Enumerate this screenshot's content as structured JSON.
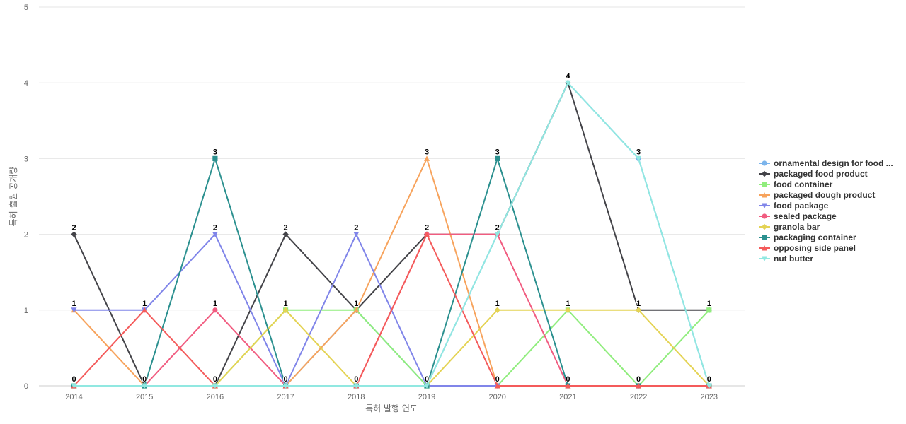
{
  "chart_data": {
    "type": "line",
    "xlabel": "특허 발행 연도",
    "ylabel": "특허 출원 공개량",
    "ylim": [
      0,
      5
    ],
    "yticks": [
      0,
      1,
      2,
      3,
      4,
      5
    ],
    "grid": true,
    "legend_position": "right",
    "x": [
      "2014",
      "2015",
      "2016",
      "2017",
      "2018",
      "2019",
      "2020",
      "2021",
      "2022",
      "2023"
    ],
    "series": [
      {
        "name": "ornamental design for food ...",
        "color": "#7cb5ec",
        "marker": "circle",
        "values": [
          0,
          0,
          0,
          0,
          1,
          0,
          2,
          4,
          3,
          0
        ]
      },
      {
        "name": "packaged food product",
        "color": "#434348",
        "marker": "diamond",
        "values": [
          2,
          0,
          0,
          2,
          1,
          2,
          2,
          4,
          1,
          1
        ]
      },
      {
        "name": "food container",
        "color": "#90ed7d",
        "marker": "square",
        "values": [
          0,
          0,
          0,
          1,
          1,
          0,
          0,
          1,
          0,
          1
        ]
      },
      {
        "name": "packaged dough product",
        "color": "#f7a35c",
        "marker": "triangle",
        "values": [
          1,
          0,
          0,
          0,
          1,
          3,
          0,
          0,
          0,
          0
        ]
      },
      {
        "name": "food package",
        "color": "#8085e9",
        "marker": "triangle-down",
        "values": [
          1,
          1,
          2,
          0,
          2,
          0,
          0,
          0,
          0,
          0
        ]
      },
      {
        "name": "sealed package",
        "color": "#f15c80",
        "marker": "circle",
        "values": [
          0,
          0,
          1,
          0,
          0,
          2,
          2,
          0,
          0,
          0
        ]
      },
      {
        "name": "granola bar",
        "color": "#e4d354",
        "marker": "diamond",
        "values": [
          0,
          0,
          0,
          1,
          0,
          0,
          1,
          1,
          1,
          0
        ]
      },
      {
        "name": "packaging container",
        "color": "#2b908f",
        "marker": "square",
        "values": [
          0,
          0,
          3,
          0,
          0,
          0,
          3,
          0,
          0,
          0
        ]
      },
      {
        "name": "opposing side panel",
        "color": "#f45b5b",
        "marker": "triangle",
        "values": [
          0,
          1,
          0,
          0,
          0,
          2,
          0,
          0,
          0,
          0
        ]
      },
      {
        "name": "nut butter",
        "color": "#91e8e1",
        "marker": "triangle-down",
        "values": [
          0,
          0,
          0,
          0,
          0,
          0,
          2,
          4,
          3,
          0
        ]
      }
    ],
    "data_labels": [
      {
        "x": "2014",
        "y": 2,
        "text": "2"
      },
      {
        "x": "2014",
        "y": 1,
        "text": "1"
      },
      {
        "x": "2014",
        "y": 0,
        "text": "0"
      },
      {
        "x": "2015",
        "y": 1,
        "text": "1"
      },
      {
        "x": "2015",
        "y": 0,
        "text": "0"
      },
      {
        "x": "2016",
        "y": 3,
        "text": "3"
      },
      {
        "x": "2016",
        "y": 2,
        "text": "2"
      },
      {
        "x": "2016",
        "y": 1,
        "text": "1"
      },
      {
        "x": "2016",
        "y": 0,
        "text": "0"
      },
      {
        "x": "2017",
        "y": 2,
        "text": "2"
      },
      {
        "x": "2017",
        "y": 1,
        "text": "1"
      },
      {
        "x": "2017",
        "y": 0,
        "text": "0"
      },
      {
        "x": "2018",
        "y": 2,
        "text": "2"
      },
      {
        "x": "2018",
        "y": 1,
        "text": "1"
      },
      {
        "x": "2018",
        "y": 0,
        "text": "0"
      },
      {
        "x": "2019",
        "y": 3,
        "text": "3"
      },
      {
        "x": "2019",
        "y": 2,
        "text": "2"
      },
      {
        "x": "2019",
        "y": 0,
        "text": "0"
      },
      {
        "x": "2020",
        "y": 3,
        "text": "3"
      },
      {
        "x": "2020",
        "y": 2,
        "text": "2"
      },
      {
        "x": "2020",
        "y": 1,
        "text": "1"
      },
      {
        "x": "2020",
        "y": 0,
        "text": "0"
      },
      {
        "x": "2021",
        "y": 4,
        "text": "4"
      },
      {
        "x": "2021",
        "y": 1,
        "text": "1"
      },
      {
        "x": "2021",
        "y": 0,
        "text": "0"
      },
      {
        "x": "2022",
        "y": 3,
        "text": "3"
      },
      {
        "x": "2022",
        "y": 1,
        "text": "1"
      },
      {
        "x": "2022",
        "y": 0,
        "text": "0"
      },
      {
        "x": "2023",
        "y": 1,
        "text": "1"
      },
      {
        "x": "2023",
        "y": 0,
        "text": "0"
      }
    ]
  }
}
